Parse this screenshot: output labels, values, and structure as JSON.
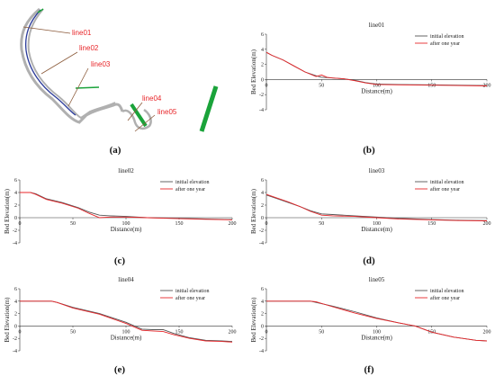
{
  "panel_letters": [
    "(a)",
    "(b)",
    "(c)",
    "(d)",
    "(e)",
    "(f)"
  ],
  "map": {
    "line_labels": [
      "line01",
      "line02",
      "line03",
      "line04",
      "line05"
    ],
    "colors": {
      "channel": "#b0b0b0",
      "thalweg": "#2a3a9a",
      "section": "#8b5a3a",
      "structure": "#1aa33a",
      "label": "#e8262a"
    }
  },
  "chart_data": [
    {
      "id": "b",
      "type": "line",
      "title": "line01",
      "xlabel": "Distance(m)",
      "ylabel": "Bed Elevation(m)",
      "xlim": [
        0,
        200
      ],
      "ylim": [
        -4,
        6
      ],
      "xticks": [
        0,
        50,
        100,
        150,
        200
      ],
      "yticks": [
        -4,
        -2,
        0,
        2,
        4,
        6
      ],
      "legend": "top-right",
      "series": [
        {
          "name": "initial elevation",
          "color": "#555555",
          "x": [
            0,
            5,
            15,
            25,
            35,
            45,
            50,
            55,
            60,
            70,
            80,
            90,
            100,
            120,
            150,
            200
          ],
          "y": [
            3.6,
            3.2,
            2.6,
            1.8,
            1.0,
            0.5,
            0.3,
            0.25,
            0.2,
            0.1,
            -0.1,
            -0.4,
            -0.6,
            -0.65,
            -0.7,
            -0.8
          ]
        },
        {
          "name": "after one year",
          "color": "#e8262a",
          "x": [
            0,
            5,
            15,
            25,
            35,
            45,
            50,
            55,
            60,
            70,
            80,
            90,
            100,
            120,
            150,
            200
          ],
          "y": [
            3.6,
            3.2,
            2.6,
            1.8,
            1.0,
            0.4,
            0.6,
            0.3,
            0.2,
            0.1,
            -0.15,
            -0.45,
            -0.65,
            -0.7,
            -0.75,
            -0.85
          ]
        }
      ]
    },
    {
      "id": "c",
      "type": "line",
      "title": "line02",
      "xlabel": "Distance(m)",
      "ylabel": "Bed Elevation(m)",
      "xlim": [
        0,
        200
      ],
      "ylim": [
        -4,
        6
      ],
      "xticks": [
        0,
        50,
        100,
        150,
        200
      ],
      "yticks": [
        -4,
        -2,
        0,
        2,
        4,
        6
      ],
      "legend": "top-right",
      "series": [
        {
          "name": "initial elevation",
          "color": "#555555",
          "x": [
            0,
            10,
            15,
            25,
            40,
            55,
            65,
            75,
            85,
            100,
            120,
            150,
            175,
            200
          ],
          "y": [
            4.0,
            4.0,
            3.8,
            3.0,
            2.4,
            1.6,
            0.9,
            0.4,
            0.3,
            0.2,
            0.0,
            -0.1,
            -0.2,
            -0.3
          ]
        },
        {
          "name": "after one year",
          "color": "#e8262a",
          "x": [
            0,
            10,
            15,
            25,
            40,
            55,
            65,
            75,
            85,
            100,
            120,
            150,
            175,
            200
          ],
          "y": [
            4.0,
            4.0,
            3.7,
            2.9,
            2.3,
            1.5,
            0.7,
            0.0,
            0.1,
            0.1,
            0.0,
            -0.15,
            -0.25,
            -0.35
          ]
        }
      ]
    },
    {
      "id": "d",
      "type": "line",
      "title": "line03",
      "xlabel": "Distance(m)",
      "ylabel": "Bed Elevation(m)",
      "xlim": [
        0,
        200
      ],
      "ylim": [
        -4,
        6
      ],
      "xticks": [
        0,
        50,
        100,
        150,
        200
      ],
      "yticks": [
        -4,
        -2,
        0,
        2,
        4,
        6
      ],
      "legend": "top-right",
      "series": [
        {
          "name": "initial elevation",
          "color": "#555555",
          "x": [
            0,
            10,
            20,
            30,
            40,
            50,
            60,
            80,
            100,
            120,
            150,
            175,
            200
          ],
          "y": [
            3.6,
            3.0,
            2.4,
            1.8,
            1.1,
            0.6,
            0.5,
            0.3,
            0.1,
            -0.1,
            -0.3,
            -0.4,
            -0.45
          ]
        },
        {
          "name": "after one year",
          "color": "#e8262a",
          "x": [
            0,
            10,
            20,
            30,
            40,
            50,
            60,
            80,
            100,
            120,
            150,
            175,
            200
          ],
          "y": [
            3.7,
            3.1,
            2.5,
            1.8,
            1.0,
            0.4,
            0.3,
            0.2,
            0.0,
            -0.2,
            -0.35,
            -0.45,
            -0.5
          ]
        }
      ]
    },
    {
      "id": "e",
      "type": "line",
      "title": "line04",
      "xlabel": "Distance(m)",
      "ylabel": "Bed Elevation(m)",
      "xlim": [
        0,
        200
      ],
      "ylim": [
        -4,
        6
      ],
      "xticks": [
        0,
        50,
        100,
        150,
        200
      ],
      "yticks": [
        -4,
        -2,
        0,
        2,
        4,
        6
      ],
      "legend": "top-right",
      "series": [
        {
          "name": "initial elevation",
          "color": "#555555",
          "x": [
            0,
            10,
            30,
            35,
            50,
            75,
            100,
            115,
            125,
            135,
            145,
            160,
            175,
            190,
            200
          ],
          "y": [
            4.0,
            4.0,
            4.0,
            3.8,
            3.0,
            2.0,
            0.6,
            -0.5,
            -0.6,
            -0.6,
            -1.2,
            -1.9,
            -2.3,
            -2.4,
            -2.5
          ]
        },
        {
          "name": "after one year",
          "color": "#e8262a",
          "x": [
            0,
            10,
            30,
            35,
            50,
            75,
            100,
            115,
            125,
            135,
            145,
            160,
            175,
            190,
            200
          ],
          "y": [
            4.0,
            4.0,
            4.0,
            3.8,
            2.9,
            1.9,
            0.4,
            -0.7,
            -0.8,
            -0.9,
            -1.4,
            -2.0,
            -2.4,
            -2.5,
            -2.6
          ]
        }
      ]
    },
    {
      "id": "f",
      "type": "line",
      "title": "line05",
      "xlabel": "Distance(m)",
      "ylabel": "Bed Elevation(m)",
      "xlim": [
        0,
        200
      ],
      "ylim": [
        -4,
        6
      ],
      "xticks": [
        0,
        50,
        100,
        150,
        200
      ],
      "yticks": [
        -4,
        -2,
        0,
        2,
        4,
        6
      ],
      "legend": "top-right",
      "series": [
        {
          "name": "initial elevation",
          "color": "#555555",
          "x": [
            0,
            20,
            40,
            45,
            60,
            80,
            100,
            120,
            135,
            150,
            170,
            190,
            200
          ],
          "y": [
            4.0,
            4.0,
            4.0,
            3.8,
            3.2,
            2.3,
            1.3,
            0.5,
            0.0,
            -1.0,
            -1.8,
            -2.3,
            -2.4
          ]
        },
        {
          "name": "after one year",
          "color": "#e8262a",
          "x": [
            0,
            20,
            40,
            45,
            60,
            80,
            100,
            120,
            135,
            150,
            170,
            190,
            200
          ],
          "y": [
            4.0,
            4.0,
            4.0,
            3.9,
            3.1,
            2.1,
            1.2,
            0.5,
            0.0,
            -1.0,
            -1.8,
            -2.3,
            -2.4
          ]
        }
      ]
    }
  ]
}
